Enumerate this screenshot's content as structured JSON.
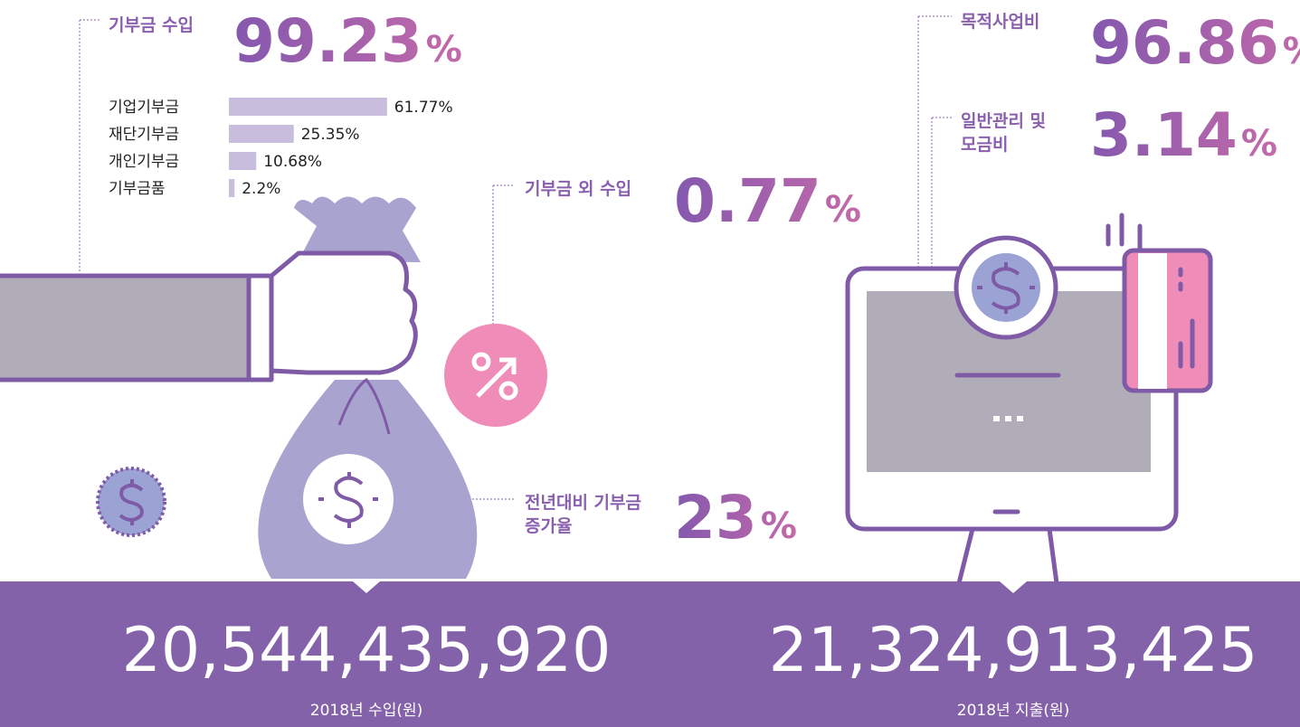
{
  "income": {
    "label": "기부금 수입",
    "value": "99.23",
    "unit": "%",
    "breakdown": [
      {
        "label": "기업기부금",
        "value": 61.77,
        "value_label": "61.77%"
      },
      {
        "label": "재단기부금",
        "value": 25.35,
        "value_label": "25.35%"
      },
      {
        "label": "개인기부금",
        "value": 10.68,
        "value_label": "10.68%"
      },
      {
        "label": "기부금품",
        "value": 2.2,
        "value_label": "2.2%"
      }
    ]
  },
  "other_income": {
    "label": "기부금 외 수입",
    "value": "0.77",
    "unit": "%"
  },
  "growth": {
    "label_lines": [
      "전년대비 기부금",
      "증가율"
    ],
    "value": "23",
    "unit": "%"
  },
  "purpose": {
    "label": "목적사업비",
    "value": "96.86",
    "unit": "%"
  },
  "admin": {
    "label_lines": [
      "일반관리 및",
      "모금비"
    ],
    "value": "3.14",
    "unit": "%"
  },
  "total_income": {
    "value": "20,544,435,920",
    "label": "2018년 수입(원)"
  },
  "total_expense": {
    "value": "21,324,913,425",
    "label": "2018년 지출(원)"
  }
}
